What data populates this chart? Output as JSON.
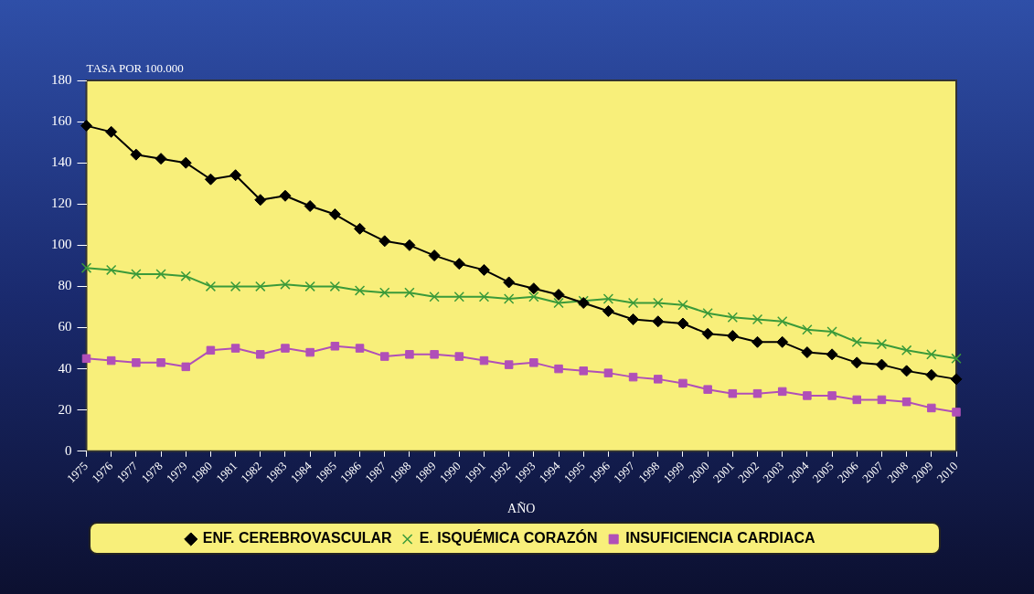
{
  "chart_data": {
    "type": "line",
    "ylabel": "TASA POR 100.000",
    "xlabel": "AÑO",
    "categories": [
      "1975",
      "1976",
      "1977",
      "1978",
      "1979",
      "1980",
      "1981",
      "1982",
      "1983",
      "1984",
      "1985",
      "1986",
      "1987",
      "1988",
      "1989",
      "1990",
      "1991",
      "1992",
      "1993",
      "1994",
      "1995",
      "1996",
      "1997",
      "1998",
      "1999",
      "2000",
      "2001",
      "2002",
      "2003",
      "2004",
      "2005",
      "2006",
      "2007",
      "2008",
      "2009",
      "2010"
    ],
    "ylim": [
      0,
      180
    ],
    "yticks": [
      0,
      20,
      40,
      60,
      80,
      100,
      120,
      140,
      160,
      180
    ],
    "grid": false,
    "legend": "bottom",
    "line_style": "solid",
    "series": [
      {
        "name": "ENF. CEREBROVASCULAR",
        "color": "#000000",
        "marker": "diamond",
        "values": [
          158,
          155,
          144,
          142,
          140,
          132,
          134,
          122,
          124,
          119,
          115,
          108,
          102,
          100,
          95,
          91,
          88,
          82,
          79,
          76,
          72,
          68,
          64,
          63,
          62,
          57,
          56,
          53,
          53,
          48,
          47,
          43,
          42,
          39,
          37,
          35
        ]
      },
      {
        "name": "E. ISQUÉMICA CORAZÓN",
        "color": "#3a9a3a",
        "marker": "cross",
        "values": [
          89,
          88,
          86,
          86,
          85,
          80,
          80,
          80,
          81,
          80,
          80,
          78,
          77,
          77,
          75,
          75,
          75,
          74,
          75,
          72,
          73,
          74,
          72,
          72,
          71,
          67,
          65,
          64,
          63,
          59,
          58,
          53,
          52,
          49,
          47,
          45
        ]
      },
      {
        "name": "INSUFICIENCIA CARDIACA",
        "color": "#b04fb8",
        "marker": "square",
        "values": [
          45,
          44,
          43,
          43,
          41,
          49,
          50,
          47,
          50,
          48,
          51,
          50,
          46,
          47,
          47,
          46,
          44,
          42,
          43,
          40,
          39,
          38,
          36,
          35,
          33,
          30,
          28,
          28,
          29,
          27,
          27,
          25,
          25,
          24,
          21,
          19
        ]
      }
    ]
  }
}
